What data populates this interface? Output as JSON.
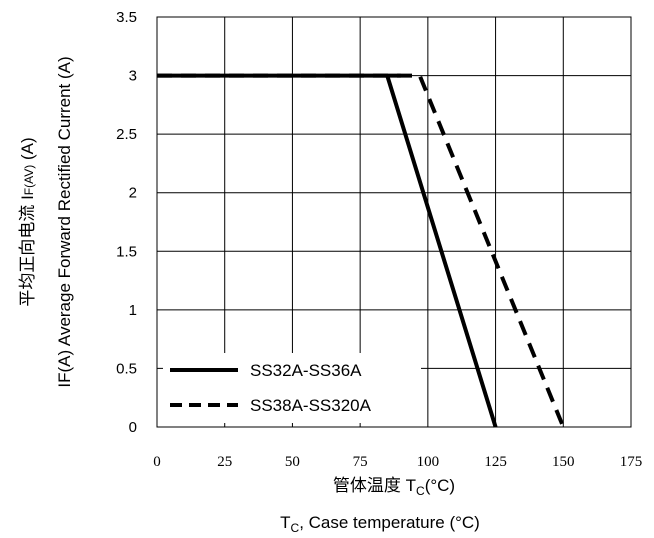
{
  "chart_data": {
    "type": "line",
    "xlabel_cn": "管体温度 T",
    "xlabel_cn_sub": "C",
    "xlabel_cn_unit": "(°C)",
    "xlabel_en": "T",
    "xlabel_en_sub": "C",
    "xlabel_en_rest": ", Case temperature (°C)",
    "ylabel_en": "IF(A)  Average Forward Rectified Current (A)",
    "ylabel_cn": "平均正向电流    I",
    "ylabel_cn_sub": "F(AV)",
    "ylabel_cn_unit": " (A)",
    "xlim": [
      0,
      175
    ],
    "ylim": [
      0,
      3.5
    ],
    "x_ticks": [
      0,
      25,
      50,
      75,
      100,
      125,
      150,
      175
    ],
    "y_ticks": [
      0,
      0.5,
      1,
      1.5,
      2,
      2.5,
      3,
      3.5
    ],
    "y_tick_labels": [
      "0",
      "0.5",
      "1",
      "1.5",
      "2",
      "2.5",
      "3",
      "3.5"
    ],
    "grid": true,
    "legend_position": "bottom-left",
    "series": [
      {
        "name": "SS32A-SS36A",
        "style": "solid",
        "color": "#000000",
        "x": [
          0,
          90,
          85,
          125
        ],
        "y": [
          3,
          3,
          3,
          0
        ]
      },
      {
        "name": "SS38A-SS320A",
        "style": "dashed",
        "color": "#000000",
        "x": [
          0,
          97,
          97,
          150
        ],
        "y": [
          3,
          3,
          3,
          0
        ]
      }
    ]
  }
}
